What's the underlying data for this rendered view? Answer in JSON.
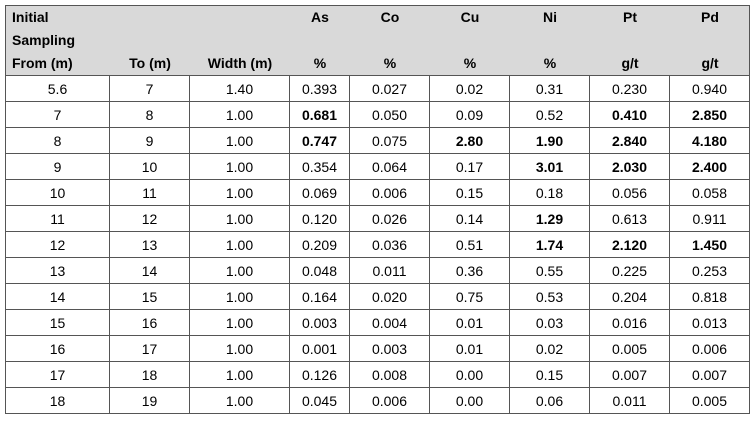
{
  "table": {
    "columns": [
      {
        "lines": [
          "Initial",
          "Sampling",
          "From (m)"
        ]
      },
      {
        "lines": [
          "To (m)"
        ]
      },
      {
        "lines": [
          "Width (m)"
        ]
      },
      {
        "lines": [
          "As",
          "%"
        ]
      },
      {
        "lines": [
          "Co",
          "%"
        ]
      },
      {
        "lines": [
          "Cu",
          "%"
        ]
      },
      {
        "lines": [
          "Ni",
          "%"
        ]
      },
      {
        "lines": [
          "Pt",
          "g/t"
        ]
      },
      {
        "lines": [
          "Pd",
          "g/t"
        ]
      }
    ],
    "rows": [
      [
        "5.6",
        "7",
        "1.40",
        "0.393",
        "0.027",
        "0.02",
        "0.31",
        "0.230",
        "0.940"
      ],
      [
        "7",
        "8",
        "1.00",
        "0.681",
        "0.050",
        "0.09",
        "0.52",
        "0.410",
        "2.850"
      ],
      [
        "8",
        "9",
        "1.00",
        "0.747",
        "0.075",
        "2.80",
        "1.90",
        "2.840",
        "4.180"
      ],
      [
        "9",
        "10",
        "1.00",
        "0.354",
        "0.064",
        "0.17",
        "3.01",
        "2.030",
        "2.400"
      ],
      [
        "10",
        "11",
        "1.00",
        "0.069",
        "0.006",
        "0.15",
        "0.18",
        "0.056",
        "0.058"
      ],
      [
        "11",
        "12",
        "1.00",
        "0.120",
        "0.026",
        "0.14",
        "1.29",
        "0.613",
        "0.911"
      ],
      [
        "12",
        "13",
        "1.00",
        "0.209",
        "0.036",
        "0.51",
        "1.74",
        "2.120",
        "1.450"
      ],
      [
        "13",
        "14",
        "1.00",
        "0.048",
        "0.011",
        "0.36",
        "0.55",
        "0.225",
        "0.253"
      ],
      [
        "14",
        "15",
        "1.00",
        "0.164",
        "0.020",
        "0.75",
        "0.53",
        "0.204",
        "0.818"
      ],
      [
        "15",
        "16",
        "1.00",
        "0.003",
        "0.004",
        "0.01",
        "0.03",
        "0.016",
        "0.013"
      ],
      [
        "16",
        "17",
        "1.00",
        "0.001",
        "0.003",
        "0.01",
        "0.02",
        "0.005",
        "0.006"
      ],
      [
        "17",
        "18",
        "1.00",
        "0.126",
        "0.008",
        "0.00",
        "0.15",
        "0.007",
        "0.007"
      ],
      [
        "18",
        "19",
        "1.00",
        "0.045",
        "0.006",
        "0.00",
        "0.06",
        "0.011",
        "0.005"
      ]
    ],
    "bold": [
      [],
      [
        3,
        7,
        8
      ],
      [
        3,
        5,
        6,
        7,
        8
      ],
      [
        6,
        7,
        8
      ],
      [],
      [
        6
      ],
      [
        6,
        7,
        8
      ],
      [],
      [],
      [],
      [],
      [],
      []
    ]
  }
}
